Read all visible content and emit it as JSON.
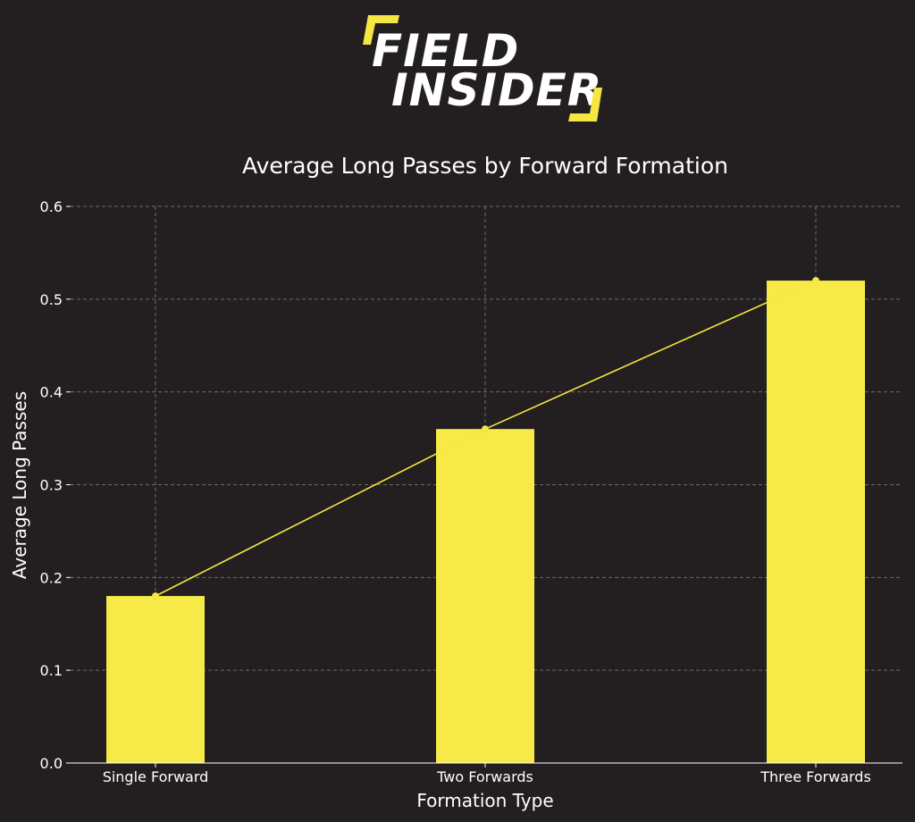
{
  "logo": {
    "line1": "FIELD",
    "line2": "INSIDER",
    "text_color": "#ffffff",
    "accent_color": "#f5e642"
  },
  "chart_data": {
    "type": "bar",
    "title": "Average Long Passes by Forward Formation",
    "xlabel": "Formation Type",
    "ylabel": "Average Long Passes",
    "categories": [
      "Single Forward",
      "Two Forwards",
      "Three Forwards"
    ],
    "values": [
      0.18,
      0.36,
      0.52
    ],
    "ylim": [
      0,
      0.6
    ],
    "yticks": [
      "0.0",
      "0.1",
      "0.2",
      "0.3",
      "0.4",
      "0.5",
      "0.6"
    ],
    "overlay_line": true,
    "grid": true,
    "bar_color": "#f7ea48",
    "line_color": "#f5e642",
    "grid_color": "#6e6a6b",
    "text_color": "#ffffff",
    "background": "#231f20"
  }
}
